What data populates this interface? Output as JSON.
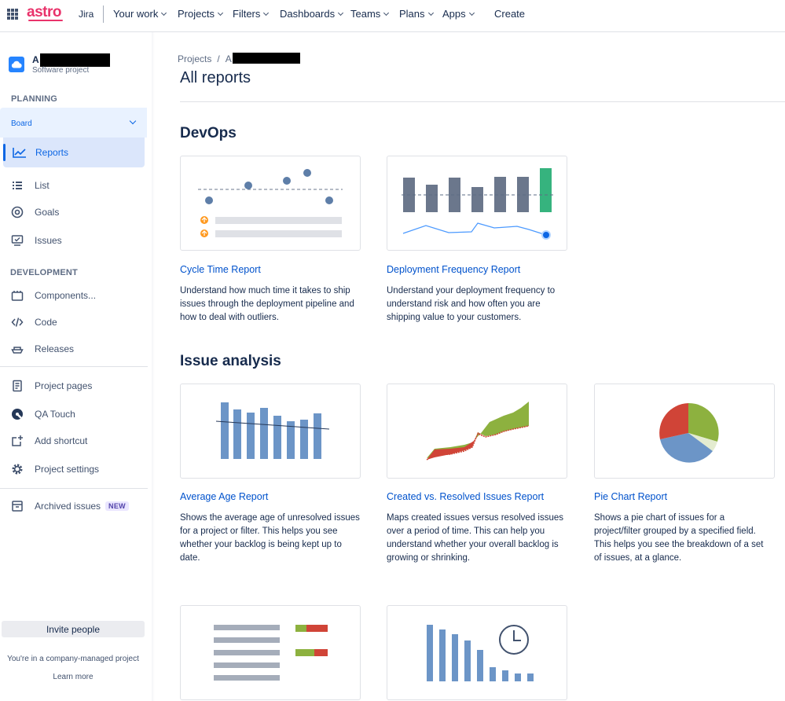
{
  "topnav": {
    "logo": "astro",
    "product": "Jira",
    "items": [
      "Your work",
      "Projects",
      "Filters",
      "Dashboards",
      "Teams",
      "Plans",
      "Apps"
    ],
    "create": "Create"
  },
  "sidebar": {
    "project_initial": "A",
    "project_type": "Software project",
    "planning_label": "PLANNING",
    "board_label": "Board",
    "reports_label": "Reports",
    "planning_items": [
      "List",
      "Goals",
      "Issues"
    ],
    "development_label": "DEVELOPMENT",
    "development_items": [
      "Components...",
      "Code",
      "Releases"
    ],
    "other_items": [
      "Project pages",
      "QA Touch",
      "Add shortcut",
      "Project settings"
    ],
    "archived_label": "Archived issues",
    "new_badge": "NEW",
    "invite_label": "Invite people",
    "managed_text": "You're in a company-managed project",
    "learn_more": "Learn more"
  },
  "main": {
    "breadcrumb_projects": "Projects",
    "breadcrumb_sep": "/",
    "breadcrumb_project": "A",
    "title": "All reports",
    "devops_heading": "DevOps",
    "issue_heading": "Issue analysis",
    "devops_cards": [
      {
        "title": "Cycle Time Report",
        "desc": "Understand how much time it takes to ship issues through the deployment pipeline and how to deal with outliers."
      },
      {
        "title": "Deployment Frequency Report",
        "desc": "Understand your deployment frequency to understand risk and how often you are shipping value to your customers."
      }
    ],
    "issue_cards": [
      {
        "title": "Average Age Report",
        "desc": "Shows the average age of unresolved issues for a project or filter. This helps you see whether your backlog is being kept up to date."
      },
      {
        "title": "Created vs. Resolved Issues Report",
        "desc": "Maps created issues versus resolved issues over a period of time. This can help you understand whether your overall backlog is growing or shrinking."
      },
      {
        "title": "Pie Chart Report",
        "desc": "Shows a pie chart of issues for a project/filter grouped by a specified field. This helps you see the breakdown of a set of issues, at a glance."
      }
    ]
  }
}
